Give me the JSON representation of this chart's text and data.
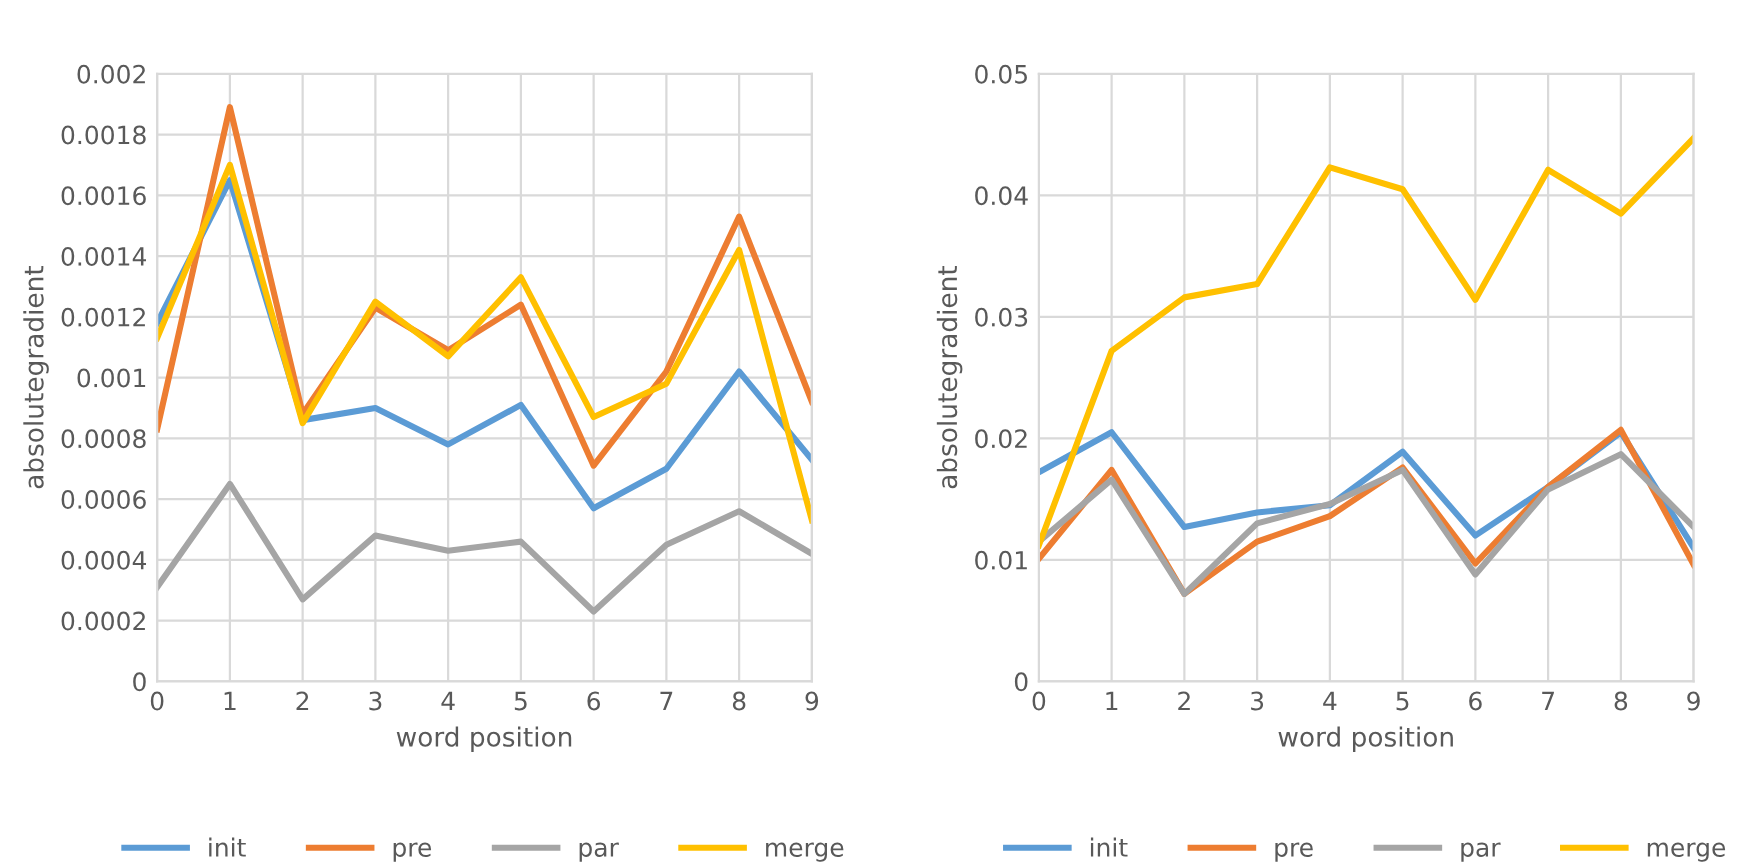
{
  "chart_data": [
    {
      "type": "line",
      "xlabel": "word position",
      "ylabel": "absolutegradient",
      "categories": [
        "0",
        "1",
        "2",
        "3",
        "4",
        "5",
        "6",
        "7",
        "8",
        "9"
      ],
      "ylim": [
        0,
        0.002
      ],
      "yticks": [
        0,
        0.0002,
        0.0004,
        0.0006,
        0.0008,
        0.001,
        0.0012,
        0.0014,
        0.0016,
        0.0018,
        0.002
      ],
      "grid": true,
      "legend": "bottom",
      "marker": "none",
      "line_style": "solid",
      "series": [
        {
          "name": "init",
          "color": "#5b9bd5",
          "values": [
            0.00118,
            0.00165,
            0.00086,
            0.0009,
            0.00078,
            0.00091,
            0.00057,
            0.0007,
            0.00102,
            0.00073
          ]
        },
        {
          "name": "pre",
          "color": "#ed7d31",
          "values": [
            0.00083,
            0.00189,
            0.00088,
            0.00123,
            0.00109,
            0.00124,
            0.00071,
            0.00102,
            0.00153,
            0.00092
          ]
        },
        {
          "name": "par",
          "color": "#a5a5a5",
          "values": [
            0.00031,
            0.00065,
            0.00027,
            0.00048,
            0.00043,
            0.00046,
            0.00023,
            0.00045,
            0.00056,
            0.00042
          ]
        },
        {
          "name": "merge",
          "color": "#ffc000",
          "values": [
            0.00113,
            0.0017,
            0.00085,
            0.00125,
            0.00107,
            0.00133,
            0.00087,
            0.00098,
            0.00142,
            0.00053
          ]
        }
      ]
    },
    {
      "type": "line",
      "xlabel": "word position",
      "ylabel": "absolutegradient",
      "categories": [
        "0",
        "1",
        "2",
        "3",
        "4",
        "5",
        "6",
        "7",
        "8",
        "9"
      ],
      "ylim": [
        0,
        0.05
      ],
      "yticks": [
        0,
        0.01,
        0.02,
        0.03,
        0.04,
        0.05
      ],
      "grid": true,
      "legend": "bottom",
      "marker": "none",
      "line_style": "solid",
      "series": [
        {
          "name": "init",
          "color": "#5b9bd5",
          "values": [
            0.0172,
            0.0205,
            0.0127,
            0.0139,
            0.0145,
            0.0189,
            0.012,
            0.016,
            0.0205,
            0.011
          ]
        },
        {
          "name": "pre",
          "color": "#ed7d31",
          "values": [
            0.0101,
            0.0174,
            0.0072,
            0.0115,
            0.0136,
            0.0176,
            0.0097,
            0.016,
            0.0207,
            0.0096
          ]
        },
        {
          "name": "par",
          "color": "#a5a5a5",
          "values": [
            0.0115,
            0.0166,
            0.0072,
            0.013,
            0.0146,
            0.0174,
            0.0088,
            0.0158,
            0.0187,
            0.0127
          ]
        },
        {
          "name": "merge",
          "color": "#ffc000",
          "values": [
            0.0112,
            0.0272,
            0.0316,
            0.0327,
            0.0423,
            0.0405,
            0.0314,
            0.0421,
            0.0385,
            0.0447
          ]
        }
      ]
    }
  ]
}
